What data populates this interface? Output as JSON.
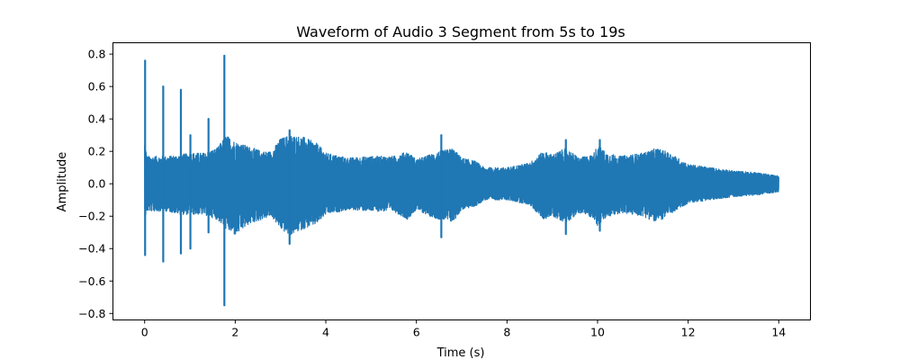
{
  "chart_data": {
    "type": "line",
    "title": "Waveform of Audio 3 Segment from 5s to 19s",
    "xlabel": "Time (s)",
    "ylabel": "Amplitude",
    "xlim": [
      -0.7,
      14.7
    ],
    "ylim": [
      -0.84,
      0.87
    ],
    "xticks": [
      0,
      2,
      4,
      6,
      8,
      10,
      12,
      14
    ],
    "xtick_labels": [
      "0",
      "2",
      "4",
      "6",
      "8",
      "10",
      "12",
      "14"
    ],
    "yticks": [
      0.8,
      0.6,
      0.4,
      0.2,
      0.0,
      -0.2,
      -0.4,
      -0.6,
      -0.8
    ],
    "ytick_labels": [
      "0.8",
      "0.6",
      "0.4",
      "0.2",
      "0.0",
      "−0.2",
      "−0.4",
      "−0.6",
      "−0.8"
    ],
    "grid": false,
    "color": "#1f77b4",
    "series": [
      {
        "envelope": {
          "t": [
            0.0,
            0.05,
            0.3,
            0.5,
            0.8,
            1.0,
            1.3,
            1.6,
            1.8,
            2.0,
            2.3,
            2.6,
            2.8,
            3.0,
            3.2,
            3.5,
            3.8,
            4.0,
            4.5,
            5.0,
            5.5,
            5.8,
            6.0,
            6.3,
            6.5,
            6.8,
            7.0,
            7.3,
            7.5,
            8.0,
            8.5,
            8.8,
            9.0,
            9.3,
            9.6,
            9.9,
            10.0,
            10.2,
            10.5,
            11.0,
            11.3,
            11.6,
            12.0,
            12.5,
            13.0,
            13.5,
            14.0
          ],
          "upper": [
            0.27,
            0.17,
            0.17,
            0.17,
            0.18,
            0.19,
            0.19,
            0.22,
            0.3,
            0.26,
            0.23,
            0.2,
            0.2,
            0.28,
            0.3,
            0.29,
            0.25,
            0.19,
            0.16,
            0.17,
            0.17,
            0.2,
            0.15,
            0.18,
            0.2,
            0.22,
            0.16,
            0.14,
            0.1,
            0.1,
            0.13,
            0.2,
            0.18,
            0.22,
            0.16,
            0.18,
            0.24,
            0.19,
            0.17,
            0.19,
            0.22,
            0.19,
            0.12,
            0.1,
            0.08,
            0.07,
            0.05
          ],
          "lower": [
            -0.22,
            -0.17,
            -0.17,
            -0.17,
            -0.19,
            -0.19,
            -0.19,
            -0.22,
            -0.28,
            -0.32,
            -0.25,
            -0.22,
            -0.2,
            -0.28,
            -0.32,
            -0.28,
            -0.25,
            -0.19,
            -0.16,
            -0.17,
            -0.17,
            -0.22,
            -0.16,
            -0.2,
            -0.22,
            -0.24,
            -0.16,
            -0.14,
            -0.1,
            -0.1,
            -0.13,
            -0.22,
            -0.2,
            -0.24,
            -0.18,
            -0.21,
            -0.26,
            -0.21,
            -0.18,
            -0.2,
            -0.24,
            -0.19,
            -0.12,
            -0.1,
            -0.08,
            -0.07,
            -0.05
          ]
        },
        "peaks": [
          {
            "t": 0.01,
            "high": 0.76,
            "low": -0.44
          },
          {
            "t": 0.41,
            "high": 0.6,
            "low": -0.48
          },
          {
            "t": 0.8,
            "high": 0.58,
            "low": -0.43
          },
          {
            "t": 1.01,
            "high": 0.3,
            "low": -0.4
          },
          {
            "t": 1.41,
            "high": 0.4,
            "low": -0.3
          },
          {
            "t": 1.76,
            "high": 0.79,
            "low": -0.75
          },
          {
            "t": 3.2,
            "high": 0.33,
            "low": -0.37
          },
          {
            "t": 6.55,
            "high": 0.3,
            "low": -0.33
          },
          {
            "t": 9.3,
            "high": 0.27,
            "low": -0.31
          },
          {
            "t": 10.05,
            "high": 0.27,
            "low": -0.29
          }
        ]
      }
    ]
  }
}
